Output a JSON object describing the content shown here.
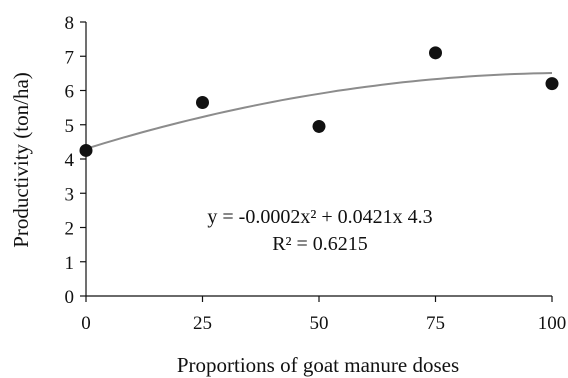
{
  "chart_data": {
    "type": "scatter",
    "xlabel": "Proportions of goat manure doses",
    "ylabel": "Productivity (ton/ha)",
    "xlim": [
      0,
      100
    ],
    "ylim": [
      0,
      8
    ],
    "x_ticks": [
      "0",
      "25",
      "50",
      "75",
      "100"
    ],
    "y_ticks": [
      "0",
      "1",
      "2",
      "3",
      "4",
      "5",
      "6",
      "7",
      "8"
    ],
    "grid": false,
    "series": [
      {
        "points": [
          {
            "x": 0,
            "y": 4.25
          },
          {
            "x": 25,
            "y": 5.65
          },
          {
            "x": 50,
            "y": 4.95
          },
          {
            "x": 75,
            "y": 7.1
          },
          {
            "x": 100,
            "y": 6.2
          }
        ],
        "marker_color": "#111111"
      }
    ],
    "trendline": {
      "type": "polynomial",
      "coefficients": {
        "a": -0.0002,
        "b": 0.0421,
        "c": 4.3
      },
      "color": "#8c8c8c"
    },
    "annotations": {
      "equation": "y = -0.0002x² + 0.0421x 4.3",
      "r_squared": "R² = 0.6215"
    }
  }
}
